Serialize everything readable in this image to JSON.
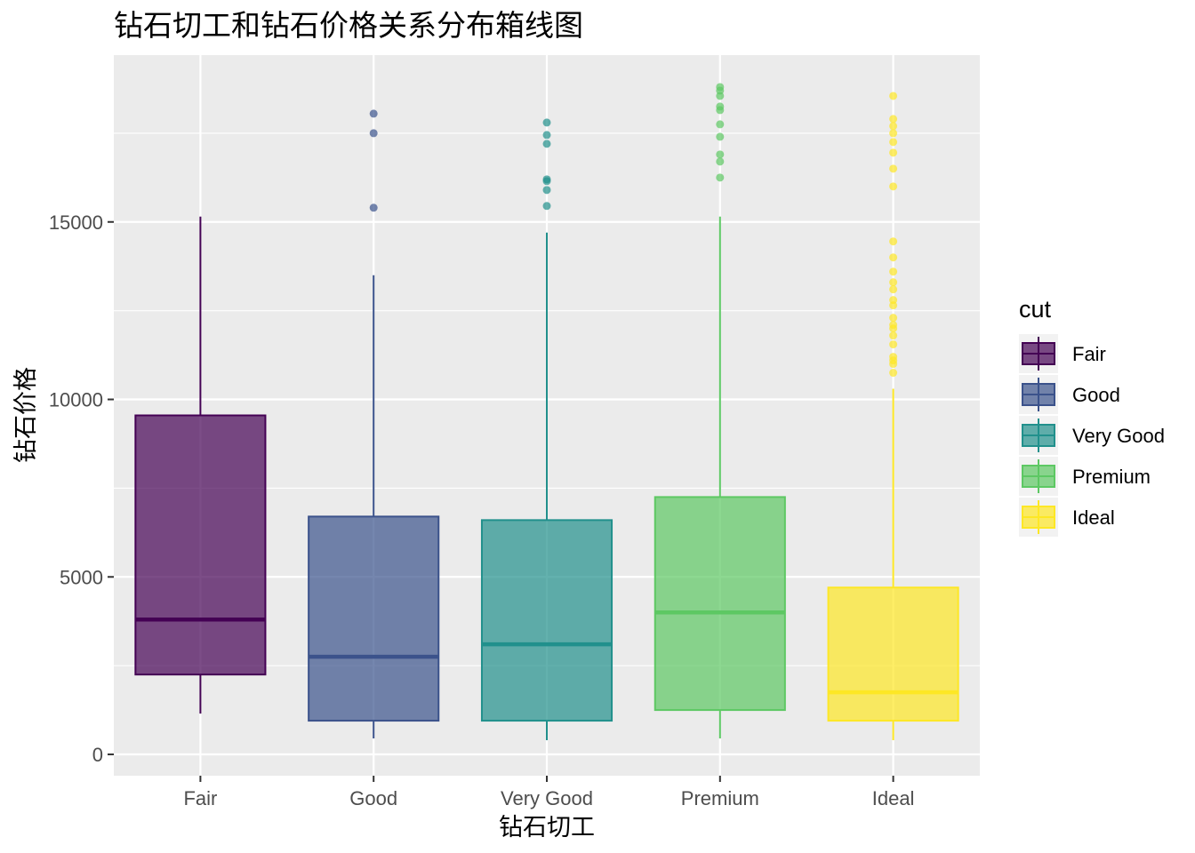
{
  "chart_data": {
    "type": "boxplot",
    "title": "钻石切工和钻石价格关系分布箱线图",
    "xlabel": "钻石切工",
    "ylabel": "钻石价格",
    "categories": [
      "Fair",
      "Good",
      "Very Good",
      "Premium",
      "Ideal"
    ],
    "ylim": [
      -600,
      19700
    ],
    "y_ticks": [
      0,
      5000,
      10000,
      15000
    ],
    "y_tick_labels": [
      "0",
      "5000",
      "10000",
      "15000"
    ],
    "grid": true,
    "legend": {
      "title": "cut",
      "placement": "right",
      "entries": [
        "Fair",
        "Good",
        "Very Good",
        "Premium",
        "Ideal"
      ]
    },
    "colors": [
      "#440154",
      "#3B528B",
      "#21908C",
      "#5DC863",
      "#FDE725"
    ],
    "panel_background": "#EBEBEB",
    "box_alpha": 0.7,
    "series": [
      {
        "category": "Fair",
        "whisker_low": 1150,
        "q1": 2250,
        "median": 3800,
        "q3": 9550,
        "whisker_high": 15150,
        "outliers": []
      },
      {
        "category": "Good",
        "whisker_low": 450,
        "q1": 950,
        "median": 2750,
        "q3": 6700,
        "whisker_high": 13500,
        "outliers": [
          15400,
          17500,
          18050
        ]
      },
      {
        "category": "Very Good",
        "whisker_low": 400,
        "q1": 950,
        "median": 3100,
        "q3": 6600,
        "whisker_high": 14700,
        "outliers": [
          15450,
          15900,
          16150,
          16200,
          17200,
          17450,
          17800
        ]
      },
      {
        "category": "Premium",
        "whisker_low": 450,
        "q1": 1250,
        "median": 4000,
        "q3": 7250,
        "whisker_high": 15150,
        "outliers": [
          16250,
          16700,
          16900,
          17400,
          17750,
          18150,
          18250,
          18550,
          18700,
          18800
        ]
      },
      {
        "category": "Ideal",
        "whisker_low": 400,
        "q1": 950,
        "median": 1750,
        "q3": 4700,
        "whisker_high": 10300,
        "outliers": [
          10750,
          11000,
          11100,
          11200,
          11550,
          11800,
          12000,
          12100,
          12300,
          12650,
          12800,
          13100,
          13300,
          13600,
          14000,
          14450,
          16000,
          16500,
          16950,
          17250,
          17500,
          17700,
          17900,
          18550
        ]
      }
    ]
  }
}
